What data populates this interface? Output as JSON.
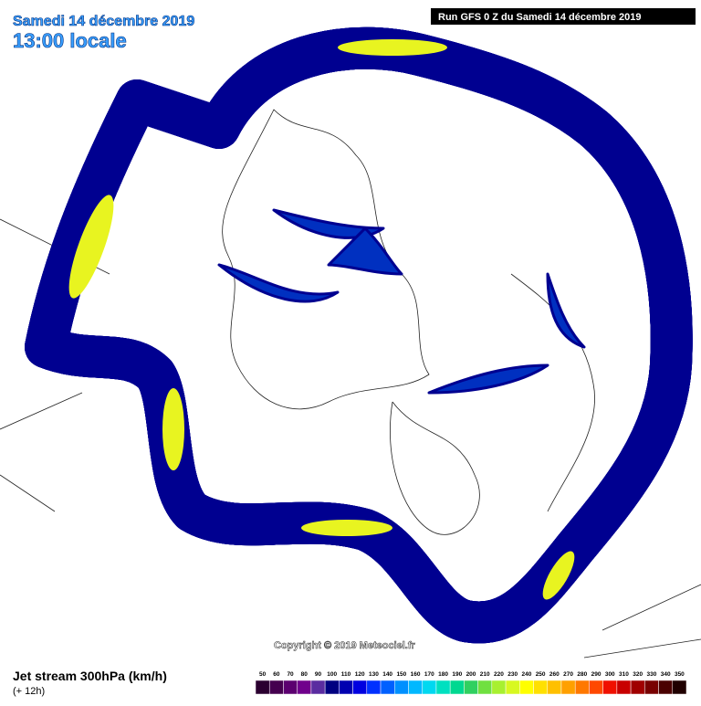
{
  "header": {
    "date": "Samedi 14 décembre 2019",
    "time": "13:00 locale",
    "run": "Run GFS 0 Z du Samedi 14 décembre 2019"
  },
  "copyright": "Copyright © 2019 Meteociel.fr",
  "legend": {
    "title": "Jet stream 300hPa (km/h)",
    "lead": "(+ 12h)",
    "scale": [
      {
        "value": 50,
        "color": "#2b0030"
      },
      {
        "value": 60,
        "color": "#45004f"
      },
      {
        "value": 70,
        "color": "#5c0070"
      },
      {
        "value": 80,
        "color": "#70008c"
      },
      {
        "value": 90,
        "color": "#5a2ca0"
      },
      {
        "value": 100,
        "color": "#000080"
      },
      {
        "value": 110,
        "color": "#0000b0"
      },
      {
        "value": 120,
        "color": "#0000e0"
      },
      {
        "value": 130,
        "color": "#0030ff"
      },
      {
        "value": 140,
        "color": "#0060ff"
      },
      {
        "value": 150,
        "color": "#0090ff"
      },
      {
        "value": 160,
        "color": "#00b8ff"
      },
      {
        "value": 170,
        "color": "#00d8f0"
      },
      {
        "value": 180,
        "color": "#00e0c0"
      },
      {
        "value": 190,
        "color": "#00d890"
      },
      {
        "value": 200,
        "color": "#30d060"
      },
      {
        "value": 210,
        "color": "#70e040"
      },
      {
        "value": 220,
        "color": "#a8f030"
      },
      {
        "value": 230,
        "color": "#d8f820"
      },
      {
        "value": 240,
        "color": "#ffff00"
      },
      {
        "value": 250,
        "color": "#ffe000"
      },
      {
        "value": 260,
        "color": "#ffc000"
      },
      {
        "value": 270,
        "color": "#ffa000"
      },
      {
        "value": 280,
        "color": "#ff7800"
      },
      {
        "value": 290,
        "color": "#ff4800"
      },
      {
        "value": 300,
        "color": "#f01000"
      },
      {
        "value": 310,
        "color": "#c80000"
      },
      {
        "value": 320,
        "color": "#a00000"
      },
      {
        "value": 330,
        "color": "#780000"
      },
      {
        "value": 340,
        "color": "#4a0000"
      },
      {
        "value": 350,
        "color": "#200000"
      }
    ]
  }
}
